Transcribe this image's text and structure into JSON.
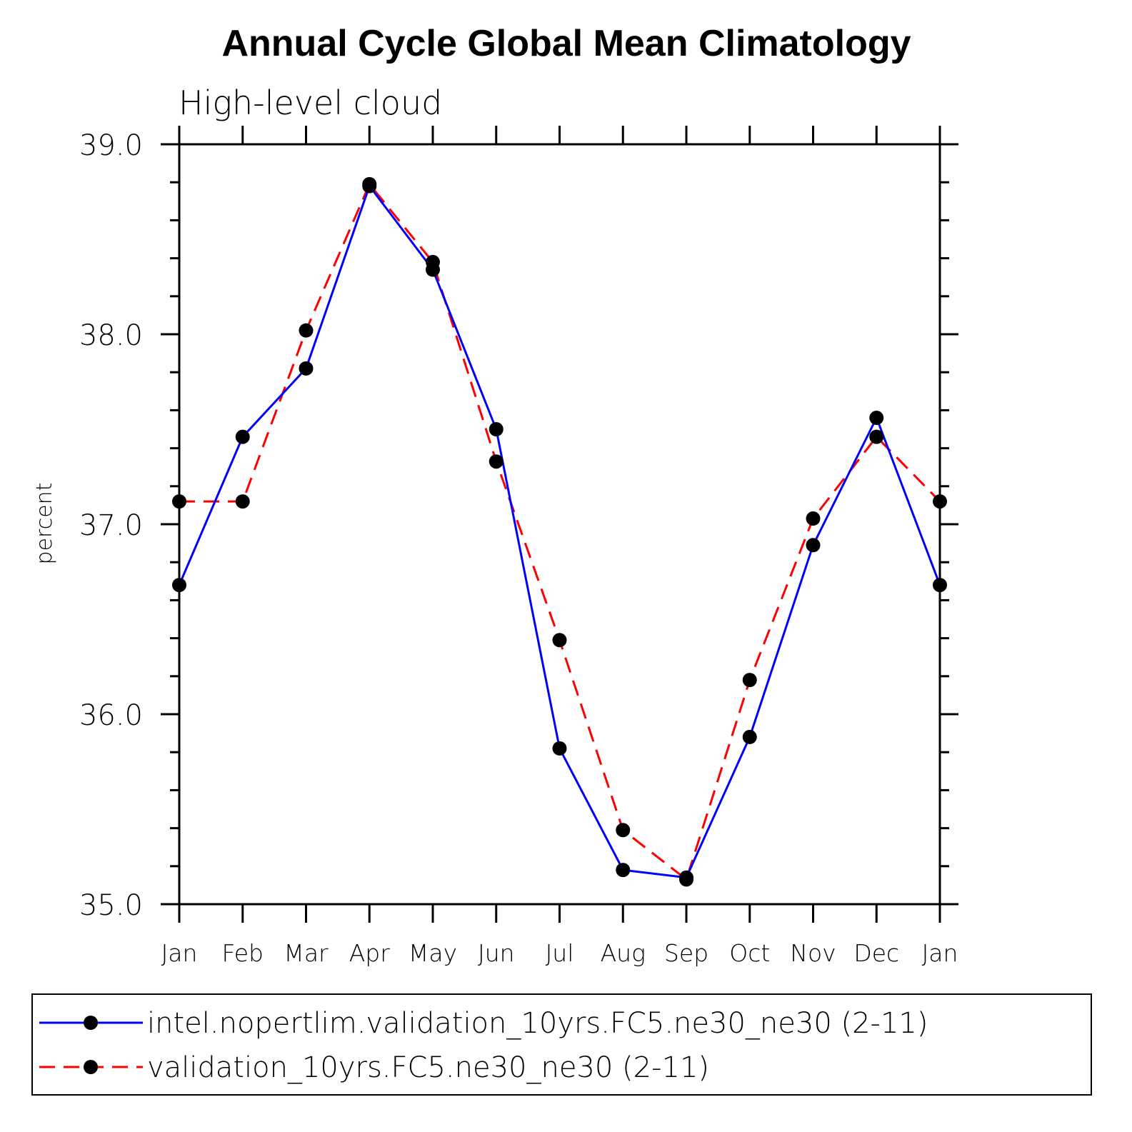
{
  "chart_data": {
    "type": "line",
    "title": "Annual Cycle Global Mean Climatology",
    "subtitle": "High-level cloud",
    "ylabel": "percent",
    "xlabel": "",
    "categories": [
      "Jan",
      "Feb",
      "Mar",
      "Apr",
      "May",
      "Jun",
      "Jul",
      "Aug",
      "Sep",
      "Oct",
      "Nov",
      "Dec",
      "Jan"
    ],
    "ylim": [
      35.0,
      39.0
    ],
    "yticks": [
      "35.0",
      "36.0",
      "37.0",
      "38.0",
      "39.0"
    ],
    "ytick_values": [
      35.0,
      36.0,
      37.0,
      38.0,
      39.0
    ],
    "grid": false,
    "legend_position": "bottom",
    "series": [
      {
        "name": "intel.nopertlim.validation_10yrs.FC5.ne30_ne30 (2-11)",
        "color": "#0000ff",
        "line_style": "solid",
        "marker": "filled-circle",
        "values": [
          36.68,
          37.46,
          37.82,
          38.78,
          38.34,
          37.5,
          35.82,
          35.18,
          35.14,
          35.88,
          36.89,
          37.56,
          36.68
        ]
      },
      {
        "name": "validation_10yrs.FC5.ne30_ne30 (2-11)",
        "color": "#ff0000",
        "line_style": "dashed",
        "marker": "filled-circle",
        "values": [
          37.12,
          37.12,
          38.02,
          38.79,
          38.38,
          37.33,
          36.39,
          35.39,
          35.13,
          36.18,
          37.03,
          37.46,
          37.12
        ]
      }
    ]
  }
}
